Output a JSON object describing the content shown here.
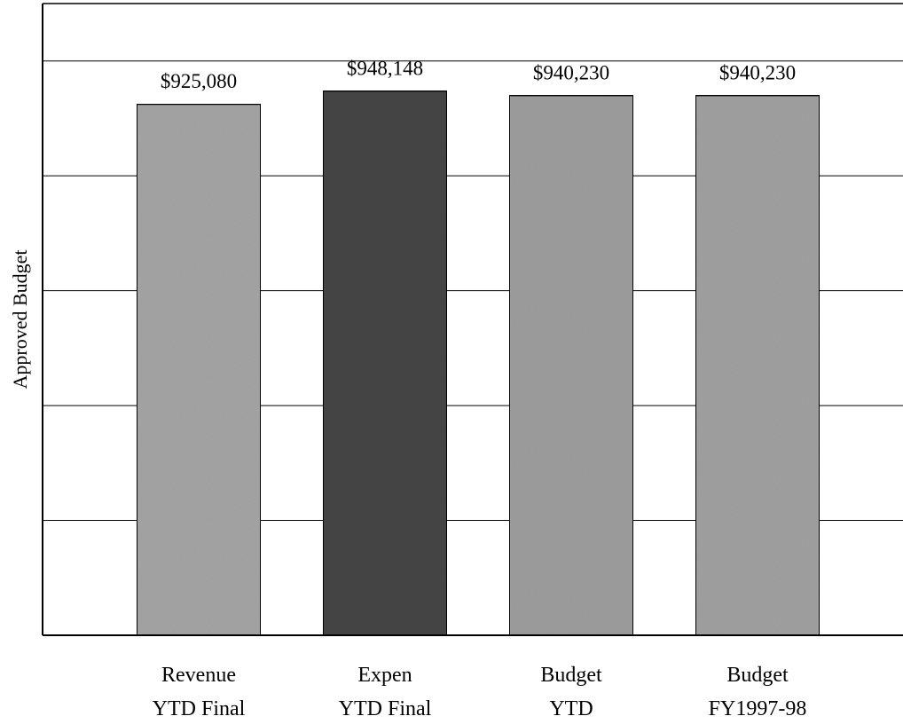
{
  "chart_data": {
    "type": "bar",
    "title": "",
    "ylabel": "Approved Budget",
    "xlabel": "",
    "ylim": [
      0,
      1100000
    ],
    "gridlines": [
      200000,
      400000,
      600000,
      800000,
      1000000
    ],
    "grid": true,
    "categories": [
      [
        "Revenue",
        "YTD Final"
      ],
      [
        "Expen",
        "YTD Final"
      ],
      [
        "Budget",
        "YTD"
      ],
      [
        "Budget",
        "FY1997-98"
      ]
    ],
    "values": [
      925080,
      948148,
      940230,
      940230
    ],
    "value_labels": [
      "$925,080",
      "$948,148",
      "$940,230",
      "$940,230"
    ],
    "colors": [
      "#a8a8a8",
      "#474747",
      "#a0a0a0",
      "#a4a4a4"
    ],
    "legend": "none"
  }
}
